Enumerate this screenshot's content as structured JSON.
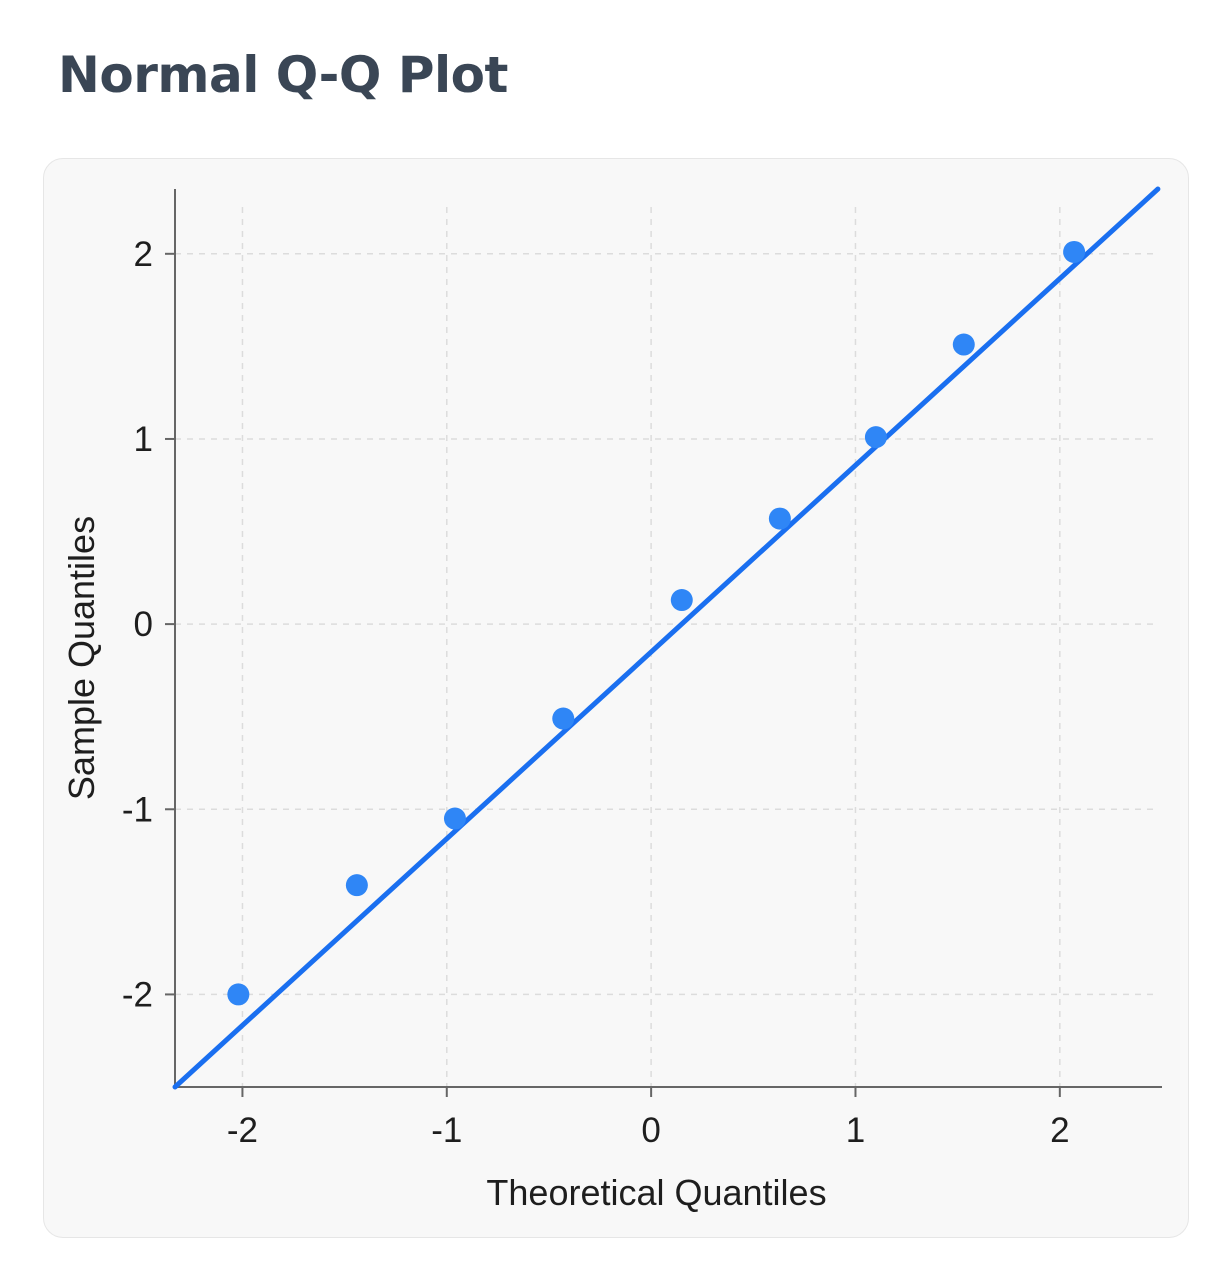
{
  "page": {
    "title": "Normal Q-Q Plot"
  },
  "chart_data": {
    "type": "scatter",
    "title": "Normal Q-Q Plot",
    "xlabel": "Theoretical Quantiles",
    "ylabel": "Sample Quantiles",
    "xlim": [
      -2.33,
      2.5
    ],
    "ylim": [
      -2.5,
      2.35
    ],
    "x_ticks": [
      -2,
      -1,
      0,
      1,
      2
    ],
    "y_ticks": [
      -2,
      -1,
      0,
      1,
      2
    ],
    "x_tick_labels": [
      "-2",
      "-1",
      "0",
      "1",
      "2"
    ],
    "y_tick_labels": [
      "-2",
      "-1",
      "0",
      "1",
      "2"
    ],
    "grid": true,
    "points": {
      "x": [
        -2.02,
        -1.44,
        -0.96,
        -0.43,
        0.15,
        0.63,
        1.1,
        1.53,
        2.07
      ],
      "y": [
        -2.0,
        -1.41,
        -1.05,
        -0.51,
        0.13,
        0.57,
        1.01,
        1.51,
        2.01
      ]
    },
    "reference_line": {
      "from": [
        -2.33,
        -2.5
      ],
      "to": [
        2.48,
        2.35
      ]
    },
    "colors": {
      "points": "#2f86f6",
      "line": "#1a6ff0",
      "grid": "#dcdcdc",
      "axis": "#666666",
      "card_background": "#f8f8f8"
    }
  }
}
